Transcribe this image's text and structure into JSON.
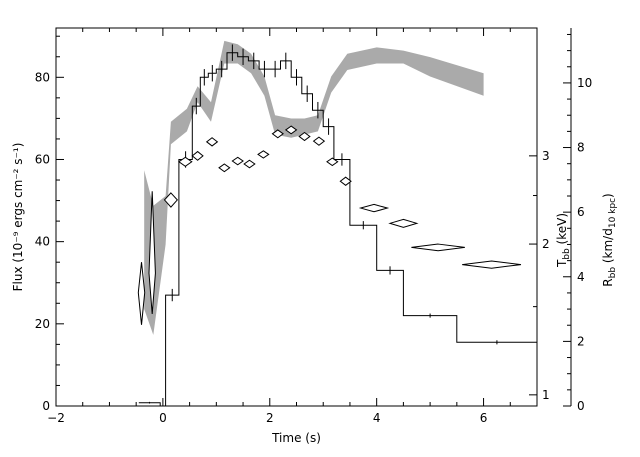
{
  "chart_data": {
    "type": "line",
    "xlabel": "Time (s)",
    "xlim": [
      -2,
      7
    ],
    "x_ticks": [
      -2,
      0,
      2,
      4,
      6
    ],
    "left_axis": {
      "label": "Flux (10⁻⁹ ergs cm⁻² s⁻¹)",
      "ylim": [
        0,
        92
      ],
      "ticks": [
        0,
        20,
        40,
        60,
        80
      ]
    },
    "tbb_axis": {
      "label": "T_bb (keV)",
      "scale": "log",
      "ticks": [
        1,
        2,
        3
      ],
      "ticks_minor": [
        1.5,
        2.5
      ],
      "range": [
        0.95,
        5.4
      ]
    },
    "rbb_axis": {
      "label": "R_bb (km/d_10 kpc)",
      "ylim": [
        0,
        11.7
      ],
      "ticks": [
        0,
        2,
        4,
        6,
        8,
        10
      ]
    },
    "flux_histogram": {
      "name": "Flux",
      "color": "#000000",
      "bins": [
        {
          "x0": -0.45,
          "x1": -0.05,
          "y": 0.8,
          "err": 0.2
        },
        {
          "x0": -0.05,
          "x1": 0.05,
          "y": 0.0,
          "err": 0
        },
        {
          "x0": 0.05,
          "x1": 0.3,
          "y": 27,
          "err": 1.5
        },
        {
          "x0": 0.3,
          "x1": 0.55,
          "y": 60,
          "err": 2
        },
        {
          "x0": 0.55,
          "x1": 0.7,
          "y": 73,
          "err": 2
        },
        {
          "x0": 0.7,
          "x1": 0.85,
          "y": 80,
          "err": 2
        },
        {
          "x0": 0.85,
          "x1": 1.0,
          "y": 81,
          "err": 2
        },
        {
          "x0": 1.0,
          "x1": 1.2,
          "y": 82,
          "err": 2
        },
        {
          "x0": 1.2,
          "x1": 1.4,
          "y": 86,
          "err": 2
        },
        {
          "x0": 1.4,
          "x1": 1.6,
          "y": 85,
          "err": 2
        },
        {
          "x0": 1.6,
          "x1": 1.8,
          "y": 84,
          "err": 2
        },
        {
          "x0": 1.8,
          "x1": 2.0,
          "y": 82,
          "err": 2
        },
        {
          "x0": 2.0,
          "x1": 2.2,
          "y": 82,
          "err": 2
        },
        {
          "x0": 2.2,
          "x1": 2.4,
          "y": 84,
          "err": 2
        },
        {
          "x0": 2.4,
          "x1": 2.6,
          "y": 80,
          "err": 2
        },
        {
          "x0": 2.6,
          "x1": 2.8,
          "y": 76,
          "err": 2
        },
        {
          "x0": 2.8,
          "x1": 3.0,
          "y": 72,
          "err": 2
        },
        {
          "x0": 3.0,
          "x1": 3.2,
          "y": 68,
          "err": 2
        },
        {
          "x0": 3.2,
          "x1": 3.5,
          "y": 60,
          "err": 1.5
        },
        {
          "x0": 3.5,
          "x1": 4.0,
          "y": 44,
          "err": 1
        },
        {
          "x0": 4.0,
          "x1": 4.5,
          "y": 33,
          "err": 1
        },
        {
          "x0": 4.5,
          "x1": 5.5,
          "y": 22,
          "err": 0.5
        },
        {
          "x0": 5.5,
          "x1": 7.0,
          "y": 15.5,
          "err": 0.5
        }
      ]
    },
    "tbb_diamonds": {
      "name": "T_bb",
      "points": [
        {
          "x": -0.4,
          "xerr": 0.06,
          "y": 1.6,
          "yerr_lo": 0.22,
          "yerr_hi": 0.24
        },
        {
          "x": -0.2,
          "xerr": 0.06,
          "y": 1.75,
          "yerr_lo": 0.3,
          "yerr_hi": 0.8
        },
        {
          "x": 0.15,
          "xerr": 0.12,
          "y": 2.45,
          "yerr_lo": 0.08,
          "yerr_hi": 0.08
        },
        {
          "x": 0.42,
          "xerr": 0.12,
          "y": 2.92,
          "yerr_lo": 0.06,
          "yerr_hi": 0.06
        },
        {
          "x": 0.65,
          "xerr": 0.1,
          "y": 3.0,
          "yerr_lo": 0.06,
          "yerr_hi": 0.06
        },
        {
          "x": 0.92,
          "xerr": 0.1,
          "y": 3.2,
          "yerr_lo": 0.06,
          "yerr_hi": 0.06
        },
        {
          "x": 1.15,
          "xerr": 0.1,
          "y": 2.84,
          "yerr_lo": 0.05,
          "yerr_hi": 0.05
        },
        {
          "x": 1.4,
          "xerr": 0.1,
          "y": 2.93,
          "yerr_lo": 0.05,
          "yerr_hi": 0.05
        },
        {
          "x": 1.62,
          "xerr": 0.1,
          "y": 2.89,
          "yerr_lo": 0.05,
          "yerr_hi": 0.05
        },
        {
          "x": 1.88,
          "xerr": 0.1,
          "y": 3.02,
          "yerr_lo": 0.05,
          "yerr_hi": 0.05
        },
        {
          "x": 2.15,
          "xerr": 0.1,
          "y": 3.32,
          "yerr_lo": 0.06,
          "yerr_hi": 0.06
        },
        {
          "x": 2.4,
          "xerr": 0.1,
          "y": 3.38,
          "yerr_lo": 0.06,
          "yerr_hi": 0.06
        },
        {
          "x": 2.65,
          "xerr": 0.1,
          "y": 3.28,
          "yerr_lo": 0.06,
          "yerr_hi": 0.06
        },
        {
          "x": 2.92,
          "xerr": 0.1,
          "y": 3.21,
          "yerr_lo": 0.06,
          "yerr_hi": 0.06
        },
        {
          "x": 3.17,
          "xerr": 0.1,
          "y": 2.92,
          "yerr_lo": 0.05,
          "yerr_hi": 0.05
        },
        {
          "x": 3.42,
          "xerr": 0.1,
          "y": 2.67,
          "yerr_lo": 0.05,
          "yerr_hi": 0.05
        },
        {
          "x": 3.95,
          "xerr": 0.25,
          "y": 2.36,
          "yerr_lo": 0.04,
          "yerr_hi": 0.04
        },
        {
          "x": 4.5,
          "xerr": 0.25,
          "y": 2.2,
          "yerr_lo": 0.04,
          "yerr_hi": 0.04
        },
        {
          "x": 5.15,
          "xerr": 0.5,
          "y": 1.97,
          "yerr_lo": 0.03,
          "yerr_hi": 0.03
        },
        {
          "x": 6.15,
          "xerr": 0.55,
          "y": 1.82,
          "yerr_lo": 0.03,
          "yerr_hi": 0.03
        }
      ]
    },
    "rbb_band": {
      "name": "R_bb",
      "color": "#aaaaaa",
      "points": [
        {
          "x": -0.35,
          "lo": 3.0,
          "hi": 7.3
        },
        {
          "x": -0.18,
          "lo": 2.2,
          "hi": 6.2
        },
        {
          "x": 0.05,
          "lo": 5.0,
          "hi": 6.5
        },
        {
          "x": 0.15,
          "lo": 8.1,
          "hi": 8.8
        },
        {
          "x": 0.45,
          "lo": 8.5,
          "hi": 9.2
        },
        {
          "x": 0.65,
          "lo": 9.4,
          "hi": 9.9
        },
        {
          "x": 0.9,
          "lo": 8.8,
          "hi": 9.4
        },
        {
          "x": 1.15,
          "lo": 10.6,
          "hi": 11.3
        },
        {
          "x": 1.4,
          "lo": 10.6,
          "hi": 11.2
        },
        {
          "x": 1.65,
          "lo": 10.3,
          "hi": 10.9
        },
        {
          "x": 1.9,
          "lo": 9.6,
          "hi": 10.2
        },
        {
          "x": 2.1,
          "lo": 8.4,
          "hi": 9.0
        },
        {
          "x": 2.4,
          "lo": 8.3,
          "hi": 8.9
        },
        {
          "x": 2.65,
          "lo": 8.4,
          "hi": 8.9
        },
        {
          "x": 2.9,
          "lo": 8.5,
          "hi": 9.0
        },
        {
          "x": 3.15,
          "lo": 9.7,
          "hi": 10.2
        },
        {
          "x": 3.45,
          "lo": 10.4,
          "hi": 10.9
        },
        {
          "x": 4.0,
          "lo": 10.6,
          "hi": 11.1
        },
        {
          "x": 4.5,
          "lo": 10.6,
          "hi": 11.0
        },
        {
          "x": 5.0,
          "lo": 10.2,
          "hi": 10.8
        },
        {
          "x": 6.0,
          "lo": 9.6,
          "hi": 10.3
        }
      ]
    }
  }
}
